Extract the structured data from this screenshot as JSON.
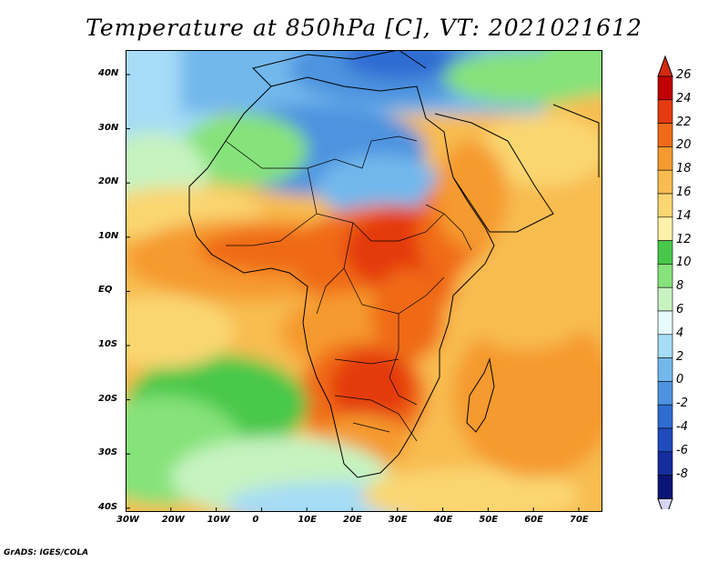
{
  "title": "Temperature at 850hPa [C], VT: 2021021612",
  "credit": "GrADS: IGES/COLA",
  "map": {
    "lon_range": [
      -30,
      75
    ],
    "lat_range": [
      -40,
      45
    ],
    "lon_ticks": [
      "30W",
      "20W",
      "10W",
      "0",
      "10E",
      "20E",
      "30E",
      "40E",
      "50E",
      "60E",
      "70E"
    ],
    "lat_ticks": [
      "40N",
      "30N",
      "20N",
      "10N",
      "EQ",
      "10S",
      "20S",
      "30S",
      "40S"
    ]
  },
  "colorbar": {
    "labels": [
      "26",
      "24",
      "22",
      "20",
      "18",
      "16",
      "14",
      "12",
      "10",
      "8",
      "6",
      "4",
      "2",
      "0",
      "-2",
      "-4",
      "-6",
      "-8"
    ],
    "colors": [
      "#c00000",
      "#e43a10",
      "#f06a18",
      "#f59a2e",
      "#f8bc50",
      "#fad671",
      "#fdf0a8",
      "#48c84a",
      "#86e27a",
      "#c6f3c0",
      "#e6fbff",
      "#a6dcf5",
      "#72b8ec",
      "#4d93df",
      "#2f6cd2",
      "#1f4bbd",
      "#152c9e",
      "#0b1575"
    ],
    "top_arrow_color": "#d42a10",
    "bottom_arrow_color": "#d6d6f2"
  }
}
